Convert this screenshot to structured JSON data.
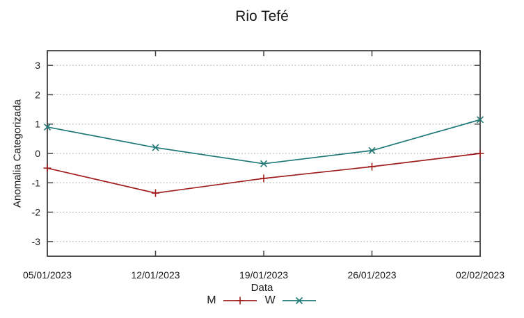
{
  "chart_data": {
    "type": "line",
    "title": "Rio Tefé",
    "xlabel": "Data",
    "ylabel": "Anomalia Categorizada",
    "categories": [
      "05/01/2023",
      "12/01/2023",
      "19/01/2023",
      "26/01/2023",
      "02/02/2023"
    ],
    "y_ticks": [
      3,
      2,
      1,
      0,
      -1,
      -2,
      -3
    ],
    "ylim": [
      -3.5,
      3.5
    ],
    "grid": "horizontal-dashed",
    "legend_position": "bottom-center",
    "series": [
      {
        "name": "M",
        "marker": "plus",
        "color": "#a01e1e",
        "values": [
          -0.5,
          -1.35,
          -0.85,
          -0.45,
          0.0
        ]
      },
      {
        "name": "W",
        "marker": "cross",
        "color": "#1e7876",
        "values": [
          0.9,
          0.2,
          -0.35,
          0.1,
          1.15
        ]
      }
    ]
  },
  "colors": {
    "background": "#ffffff",
    "border": "#404040",
    "grid": "#b0b0b0",
    "text": "#1a1a1a"
  }
}
